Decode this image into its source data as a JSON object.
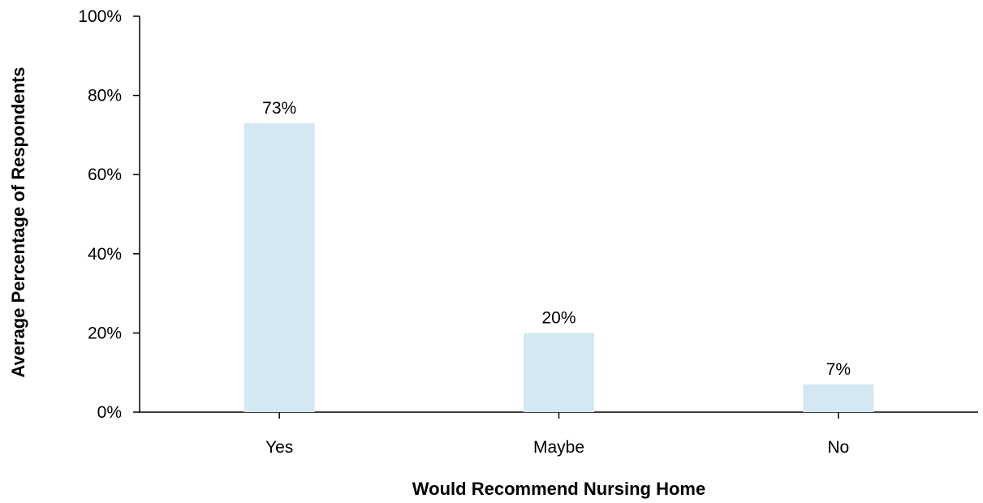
{
  "chart_data": {
    "type": "bar",
    "categories": [
      "Yes",
      "Maybe",
      "No"
    ],
    "values": [
      73,
      20,
      7
    ],
    "data_labels": [
      "73%",
      "20%",
      "7%"
    ],
    "xlabel": "Would Recommend Nursing Home",
    "ylabel": "Average Percentage of Respondents",
    "ylim": [
      0,
      100
    ],
    "yticks": [
      0,
      20,
      40,
      60,
      80,
      100
    ],
    "ytick_labels": [
      "0%",
      "20%",
      "40%",
      "60%",
      "80%",
      "100%"
    ],
    "grid": false,
    "legend": "none",
    "bar_color": "#d3e8f1"
  }
}
